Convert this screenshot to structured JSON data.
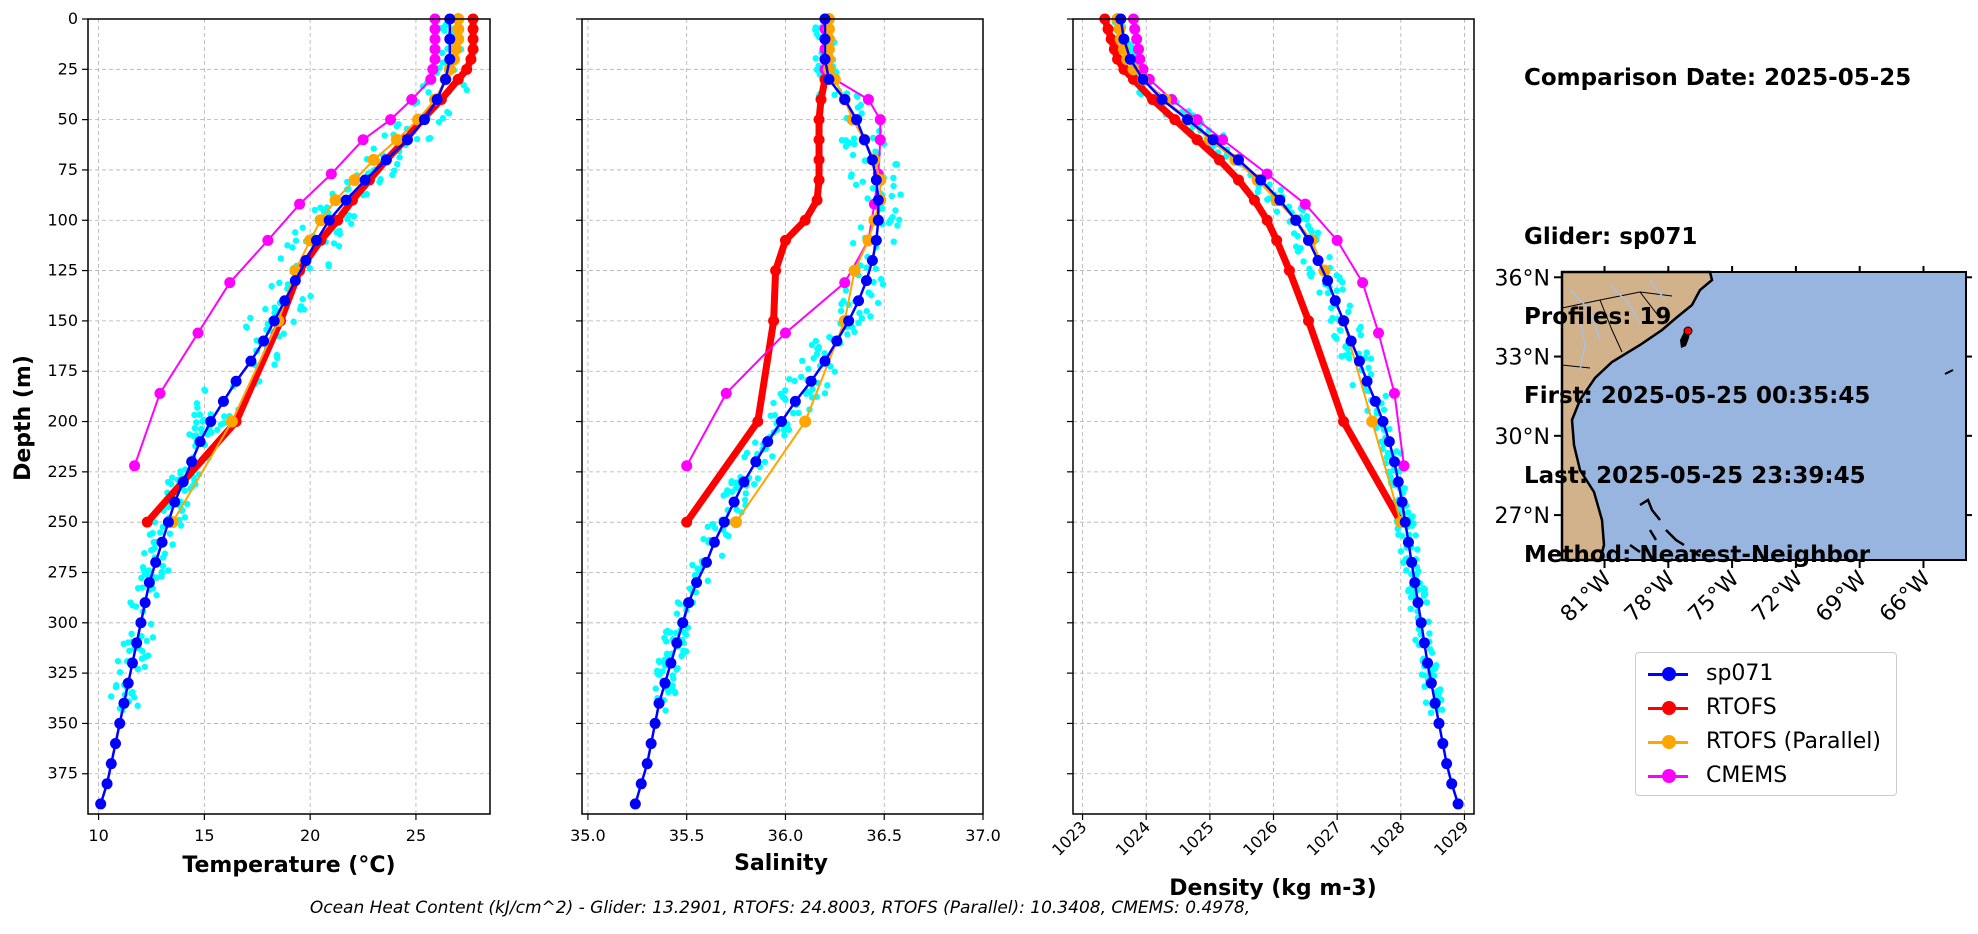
{
  "info": {
    "comparison_date": "Comparison Date: 2025-05-25",
    "glider": "Glider: sp071",
    "profiles": "Profiles: 19",
    "first": "First: 2025-05-25 00:35:45",
    "last": "Last: 2025-05-25 23:39:45",
    "method": "Method: Nearest-Neighbor"
  },
  "footer": "Ocean Heat Content (kJ/cm^2) - Glider: 13.2901,  RTOFS: 24.8003,  RTOFS (Parallel): 10.3408,  CMEMS: 0.4978,",
  "colors": {
    "glider_obs": "#00ffff",
    "sp071": "#0000ff",
    "rtofs": "#ff0000",
    "rtofs_parallel": "#ffa500",
    "cmems": "#ff00ff",
    "ocean": "#98b5e0",
    "land": "#d2b28a"
  },
  "legend": [
    {
      "label": "sp071",
      "color": "#0000ff"
    },
    {
      "label": "RTOFS",
      "color": "#ff0000"
    },
    {
      "label": "RTOFS (Parallel)",
      "color": "#ffa500"
    },
    {
      "label": "CMEMS",
      "color": "#ff00ff"
    }
  ],
  "chart_data": [
    {
      "type": "line",
      "xlabel": "Temperature (°C)",
      "ylabel": "Depth (m)",
      "xlim": [
        9.5,
        28.5
      ],
      "ylim": [
        395,
        0
      ],
      "xticks": [
        10,
        15,
        20,
        25
      ],
      "yticks": [
        0,
        25,
        50,
        75,
        100,
        125,
        150,
        175,
        200,
        225,
        250,
        275,
        300,
        325,
        350,
        375
      ],
      "grid": true,
      "series": [
        {
          "name": "sp071",
          "depth": [
            0,
            10,
            20,
            30,
            40,
            50,
            60,
            70,
            80,
            90,
            100,
            110,
            120,
            130,
            140,
            150,
            160,
            170,
            180,
            190,
            200,
            210,
            220,
            230,
            240,
            250,
            260,
            270,
            280,
            290,
            300,
            310,
            320,
            330,
            340,
            350,
            360,
            370,
            380,
            390
          ],
          "values": [
            26.6,
            26.6,
            26.6,
            26.4,
            26.0,
            25.4,
            24.6,
            23.6,
            22.6,
            21.7,
            20.9,
            20.3,
            19.8,
            19.3,
            18.8,
            18.3,
            17.8,
            17.2,
            16.5,
            15.9,
            15.3,
            14.8,
            14.4,
            14.0,
            13.6,
            13.3,
            13.0,
            12.7,
            12.4,
            12.2,
            12.0,
            11.8,
            11.6,
            11.4,
            11.2,
            11.0,
            10.8,
            10.6,
            10.4,
            10.1
          ]
        },
        {
          "name": "RTOFS",
          "depth": [
            0,
            5,
            10,
            15,
            20,
            25,
            30,
            40,
            50,
            60,
            70,
            80,
            90,
            100,
            110,
            125,
            150,
            200,
            250
          ],
          "values": [
            27.7,
            27.7,
            27.7,
            27.7,
            27.6,
            27.4,
            27.0,
            26.2,
            25.3,
            24.5,
            23.6,
            22.8,
            22.0,
            21.3,
            20.5,
            19.5,
            18.6,
            16.5,
            12.3
          ]
        },
        {
          "name": "RTOFS (Parallel)",
          "depth": [
            0,
            5,
            10,
            15,
            20,
            25,
            30,
            40,
            50,
            60,
            70,
            80,
            90,
            100,
            110,
            125,
            150,
            200,
            250
          ],
          "values": [
            27.0,
            27.0,
            27.0,
            26.9,
            26.8,
            26.6,
            26.4,
            25.9,
            25.1,
            24.1,
            23.0,
            22.1,
            21.2,
            20.5,
            20.0,
            19.3,
            18.5,
            16.3,
            13.5
          ]
        },
        {
          "name": "CMEMS",
          "depth": [
            0,
            5,
            10,
            15,
            20,
            25,
            30,
            40,
            50,
            60,
            77,
            92,
            110,
            131,
            156,
            186,
            222
          ],
          "values": [
            25.9,
            25.9,
            25.9,
            25.9,
            25.9,
            25.8,
            25.7,
            24.8,
            23.8,
            22.5,
            21.0,
            19.5,
            18.0,
            16.2,
            14.7,
            12.9,
            11.7
          ]
        }
      ]
    },
    {
      "type": "line",
      "xlabel": "Salinity",
      "xlim": [
        34.97,
        37.0
      ],
      "ylim": [
        395,
        0
      ],
      "xticks": [
        35.0,
        35.5,
        36.0,
        36.5,
        37.0
      ],
      "grid": true,
      "series": [
        {
          "name": "sp071",
          "depth": [
            0,
            10,
            20,
            30,
            40,
            50,
            60,
            70,
            80,
            90,
            100,
            110,
            120,
            130,
            140,
            150,
            160,
            170,
            180,
            190,
            200,
            210,
            220,
            230,
            240,
            250,
            260,
            270,
            280,
            290,
            300,
            310,
            320,
            330,
            340,
            350,
            360,
            370,
            380,
            390
          ],
          "values": [
            36.2,
            36.2,
            36.2,
            36.22,
            36.3,
            36.36,
            36.4,
            36.44,
            36.46,
            36.47,
            36.47,
            36.46,
            36.44,
            36.41,
            36.37,
            36.32,
            36.26,
            36.2,
            36.13,
            36.05,
            35.98,
            35.91,
            35.85,
            35.79,
            35.74,
            35.69,
            35.64,
            35.6,
            35.55,
            35.51,
            35.48,
            35.45,
            35.42,
            35.39,
            35.36,
            35.34,
            35.32,
            35.3,
            35.27,
            35.24
          ]
        },
        {
          "name": "RTOFS",
          "depth": [
            0,
            5,
            10,
            15,
            20,
            25,
            30,
            40,
            50,
            60,
            70,
            80,
            90,
            100,
            110,
            125,
            150,
            200,
            250
          ],
          "values": [
            36.22,
            36.22,
            36.22,
            36.22,
            36.22,
            36.22,
            36.2,
            36.18,
            36.17,
            36.17,
            36.17,
            36.17,
            36.16,
            36.1,
            36.0,
            35.95,
            35.94,
            35.86,
            35.5
          ]
        },
        {
          "name": "RTOFS (Parallel)",
          "depth": [
            0,
            5,
            10,
            15,
            20,
            25,
            30,
            40,
            50,
            60,
            70,
            80,
            90,
            100,
            110,
            125,
            150,
            200,
            250
          ],
          "values": [
            36.22,
            36.22,
            36.22,
            36.22,
            36.22,
            36.22,
            36.25,
            36.3,
            36.34,
            36.4,
            36.45,
            36.48,
            36.48,
            36.45,
            36.42,
            36.35,
            36.3,
            36.1,
            35.75
          ]
        },
        {
          "name": "CMEMS",
          "depth": [
            0,
            5,
            10,
            15,
            20,
            25,
            30,
            40,
            50,
            60,
            77,
            92,
            110,
            131,
            156,
            186,
            222
          ],
          "values": [
            36.2,
            36.2,
            36.2,
            36.2,
            36.2,
            36.2,
            36.25,
            36.42,
            36.48,
            36.48,
            36.47,
            36.45,
            36.42,
            36.3,
            36.0,
            35.7,
            35.5
          ]
        }
      ]
    },
    {
      "type": "line",
      "xlabel": "Density (kg m-3)",
      "xlim": [
        1022.85,
        1029.15
      ],
      "ylim": [
        395,
        0
      ],
      "xticks": [
        1023,
        1024,
        1025,
        1026,
        1027,
        1028,
        1029
      ],
      "grid": true,
      "series": [
        {
          "name": "sp071",
          "depth": [
            0,
            10,
            20,
            30,
            40,
            50,
            60,
            70,
            80,
            90,
            100,
            110,
            120,
            130,
            140,
            150,
            160,
            170,
            180,
            190,
            200,
            210,
            220,
            230,
            240,
            250,
            260,
            270,
            280,
            290,
            300,
            310,
            320,
            330,
            340,
            350,
            360,
            370,
            380,
            390
          ],
          "values": [
            1023.6,
            1023.65,
            1023.75,
            1023.95,
            1024.25,
            1024.65,
            1025.05,
            1025.45,
            1025.8,
            1026.1,
            1026.35,
            1026.55,
            1026.7,
            1026.85,
            1026.97,
            1027.1,
            1027.22,
            1027.35,
            1027.47,
            1027.6,
            1027.72,
            1027.82,
            1027.9,
            1027.96,
            1028.02,
            1028.07,
            1028.12,
            1028.17,
            1028.22,
            1028.27,
            1028.32,
            1028.37,
            1028.42,
            1028.48,
            1028.54,
            1028.6,
            1028.66,
            1028.72,
            1028.8,
            1028.9
          ]
        },
        {
          "name": "RTOFS",
          "depth": [
            0,
            5,
            10,
            15,
            20,
            25,
            30,
            40,
            50,
            60,
            70,
            80,
            90,
            100,
            110,
            125,
            150,
            200,
            250
          ],
          "values": [
            1023.35,
            1023.4,
            1023.45,
            1023.5,
            1023.55,
            1023.65,
            1023.8,
            1024.1,
            1024.45,
            1024.8,
            1025.15,
            1025.45,
            1025.7,
            1025.9,
            1026.05,
            1026.25,
            1026.55,
            1027.1,
            1028.0
          ]
        },
        {
          "name": "RTOFS (Parallel)",
          "depth": [
            0,
            5,
            10,
            15,
            20,
            25,
            30,
            40,
            50,
            60,
            70,
            80,
            90,
            100,
            110,
            125,
            150,
            200,
            250
          ],
          "values": [
            1023.55,
            1023.58,
            1023.6,
            1023.65,
            1023.7,
            1023.8,
            1023.95,
            1024.3,
            1024.65,
            1025.0,
            1025.4,
            1025.75,
            1026.05,
            1026.35,
            1026.6,
            1026.8,
            1027.1,
            1027.55,
            1028.0
          ]
        },
        {
          "name": "CMEMS",
          "depth": [
            0,
            5,
            10,
            15,
            20,
            25,
            30,
            40,
            50,
            60,
            77,
            92,
            110,
            131,
            156,
            186,
            222
          ],
          "values": [
            1023.8,
            1023.82,
            1023.85,
            1023.88,
            1023.9,
            1023.95,
            1024.05,
            1024.4,
            1024.8,
            1025.2,
            1025.9,
            1026.5,
            1027.0,
            1027.4,
            1027.65,
            1027.9,
            1028.05
          ]
        }
      ]
    }
  ],
  "map": {
    "lon_ticks": [
      "81°W",
      "78°W",
      "75°W",
      "72°W",
      "69°W",
      "66°W"
    ],
    "lat_ticks": [
      "36°N",
      "33°N",
      "30°N",
      "27°N"
    ],
    "lon_range": [
      -83,
      -64
    ],
    "lat_range": [
      25.3,
      36.2
    ],
    "glider_position": {
      "lon": -77.0,
      "lat": 33.8
    }
  }
}
